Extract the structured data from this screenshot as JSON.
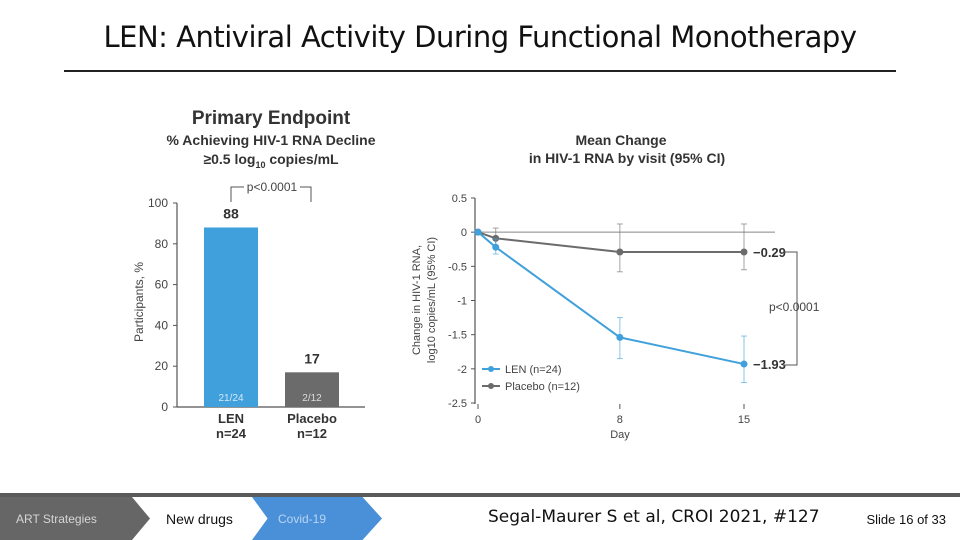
{
  "slide": {
    "title": "LEN: Antiviral Activity During Functional Monotherapy",
    "citation": "Segal-Maurer S et al, CROI 2021, #127",
    "slide_number": "Slide 16 of 33"
  },
  "nav": {
    "items": [
      "ART Strategies",
      "New drugs",
      "Covid-19"
    ],
    "active": "New drugs"
  },
  "colors": {
    "len": "#3fa0dc",
    "placebo": "#6b6b6b"
  },
  "chart_data": [
    {
      "type": "bar",
      "title": "Primary Endpoint",
      "subtitle_line1": "% Achieving HIV-1 RNA Decline",
      "subtitle_line2_pre": "≥0.5 log",
      "subtitle_line2_sub": "10",
      "subtitle_line2_post": " copies/mL",
      "ylabel": "Participants, %",
      "ylim": [
        0,
        100
      ],
      "yticks": [
        0,
        20,
        40,
        60,
        80,
        100
      ],
      "categories": [
        {
          "name": "LEN",
          "n": "n=24"
        },
        {
          "name": "Placebo",
          "n": "n=12"
        }
      ],
      "values": [
        88,
        17
      ],
      "value_labels": [
        "88",
        "17"
      ],
      "fraction_labels": [
        "21/24",
        "2/12"
      ],
      "bar_colors": [
        "#3fa0dc",
        "#6b6b6b"
      ],
      "annotation": "p<0.0001"
    },
    {
      "type": "line",
      "title_line1": "Mean Change",
      "title_line2": "in HIV-1 RNA by visit (95% CI)",
      "ylabel_line1": "Change in HIV-1 RNA,",
      "ylabel_line2": "log10 copies/mL (95% CI)",
      "xlabel": "Day",
      "xticks": [
        0,
        8,
        15
      ],
      "ylim": [
        -2.5,
        0.5
      ],
      "yticks": [
        0.5,
        0,
        -0.5,
        -1,
        -1.5,
        -2,
        -2.5
      ],
      "ytick_labels": [
        "0.5",
        "0",
        "-0.5",
        "-1",
        "-1.5",
        "-2",
        "-2.5"
      ],
      "series": [
        {
          "name": "LEN (n=24)",
          "color": "#3fa0dc",
          "x": [
            0,
            1,
            8,
            15
          ],
          "y": [
            0,
            -0.22,
            -1.54,
            -1.93
          ],
          "ci_low": [
            0,
            -0.32,
            -1.85,
            -2.2
          ],
          "ci_high": [
            0,
            -0.1,
            -1.25,
            -1.52
          ],
          "end_label": "−1.93"
        },
        {
          "name": "Placebo (n=12)",
          "color": "#6b6b6b",
          "x": [
            0,
            1,
            8,
            15
          ],
          "y": [
            0,
            -0.09,
            -0.29,
            -0.29
          ],
          "ci_low": [
            0,
            -0.22,
            -0.58,
            -0.55
          ],
          "ci_high": [
            0,
            0.06,
            0.12,
            0.12
          ],
          "end_label": "−0.29"
        }
      ],
      "annotation": "p<0.0001",
      "legend": "bottom-left"
    }
  ]
}
